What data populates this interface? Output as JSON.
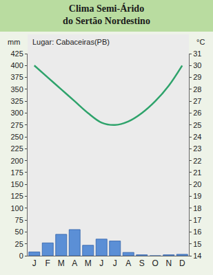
{
  "chart_data": {
    "type": "bar",
    "title": "Clima Semi-Árido\ndo Sertão Nordestino",
    "annotations": [
      "Lugar: Cabaceiras(PB)"
    ],
    "y_label": "mm",
    "y2_label": "°C",
    "categories": [
      "J",
      "F",
      "M",
      "A",
      "M",
      "J",
      "J",
      "A",
      "S",
      "O",
      "N",
      "D"
    ],
    "series": [
      {
        "type": "bar",
        "color": "#5b8fd6",
        "values": [
          8,
          27,
          45,
          55,
          22,
          35,
          31,
          7,
          2,
          0,
          2,
          3
        ]
      },
      {
        "type": "line",
        "axis": "y2",
        "color": "#2ea36b",
        "line_style": "solid",
        "values": [
          30,
          29,
          28,
          27,
          26,
          25.2,
          25,
          25.3,
          26,
          27,
          28.3,
          30
        ]
      }
    ],
    "ylim": [
      0,
      425
    ],
    "yticks": [
      0,
      25,
      50,
      75,
      100,
      125,
      150,
      175,
      200,
      225,
      250,
      275,
      300,
      325,
      350,
      375,
      400,
      425
    ],
    "y2lim": [
      14,
      31
    ],
    "y2ticks": [
      14,
      15,
      16,
      17,
      18,
      19,
      20,
      21,
      22,
      23,
      24,
      25,
      26,
      27,
      28,
      29,
      30,
      31
    ],
    "grid": false
  }
}
